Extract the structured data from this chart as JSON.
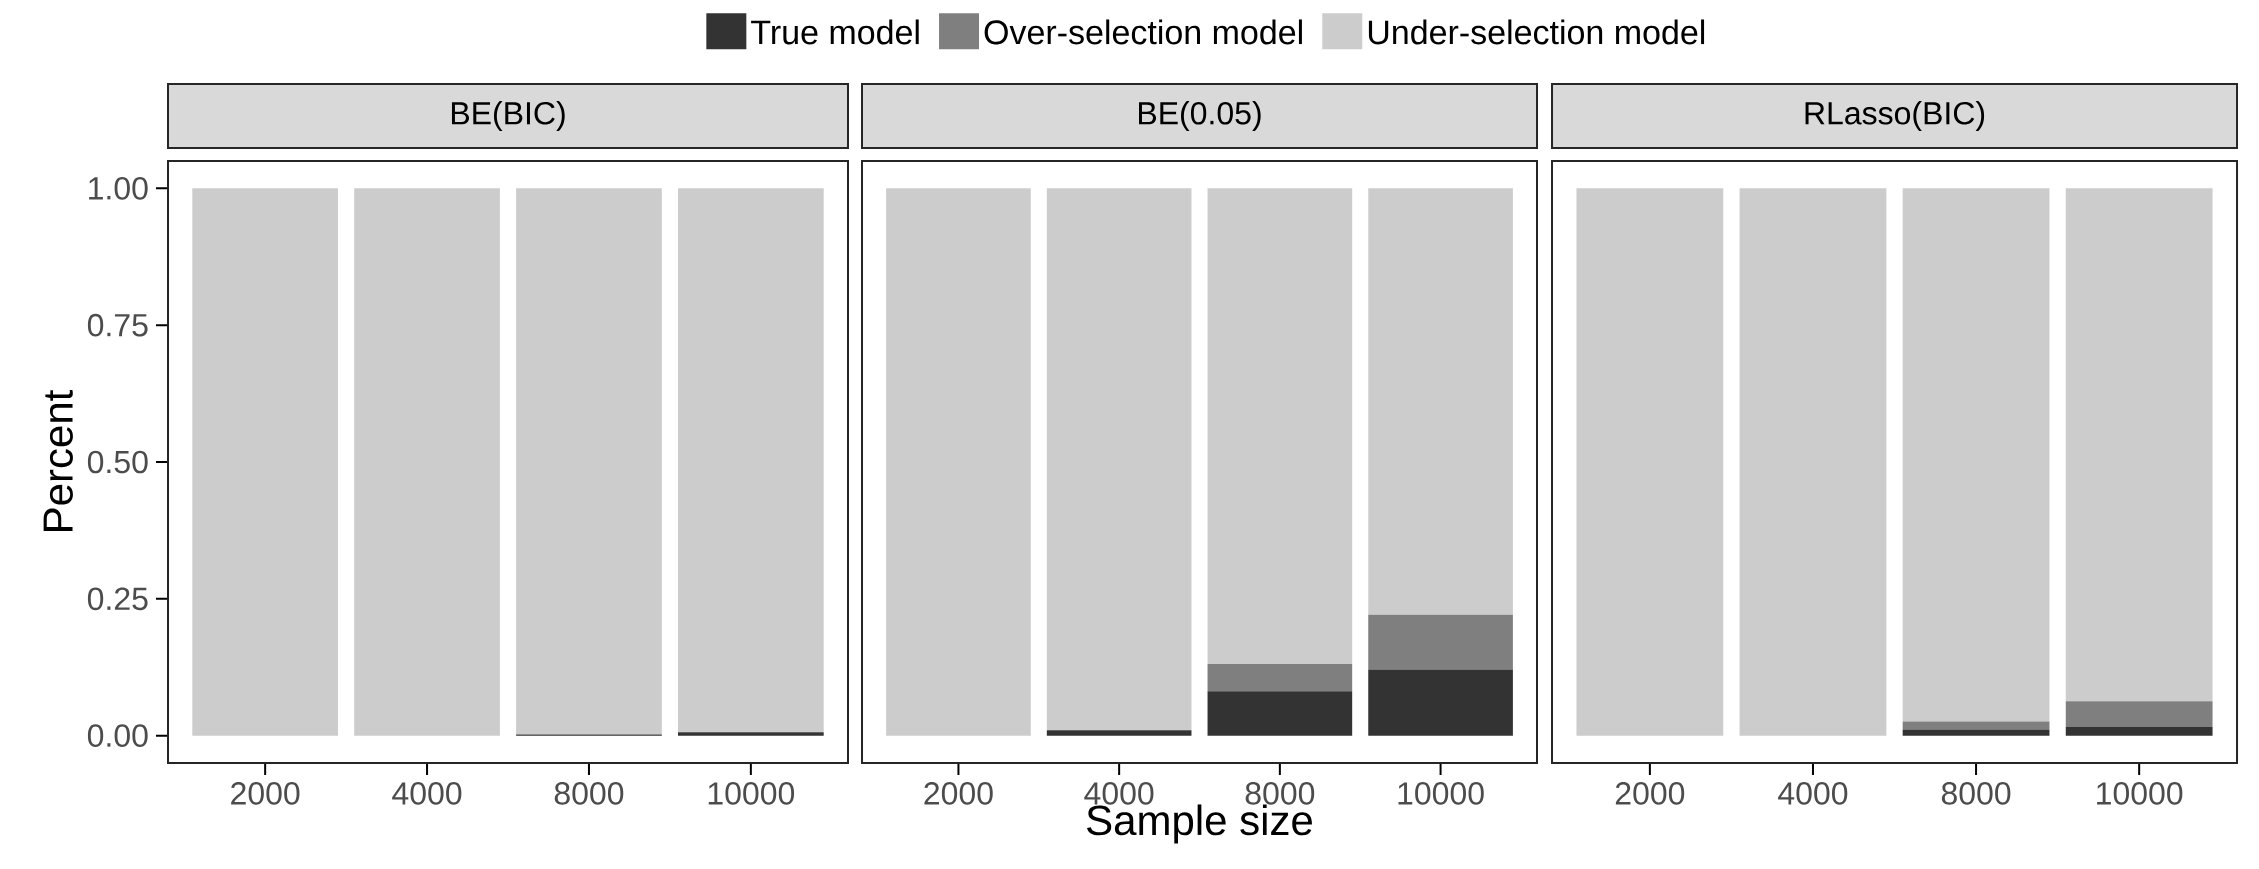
{
  "chart_data": [
    {
      "type": "bar",
      "title": "BE(BIC)",
      "ylabel": "Percent",
      "categories": [
        "2000",
        "4000",
        "8000",
        "10000"
      ],
      "stacked": true,
      "legend": "top",
      "grid": false,
      "series": [
        {
          "name": "True model",
          "color": "#333333",
          "values": [
            0,
            0,
            0.002,
            0.006
          ]
        },
        {
          "name": "Over-selection model",
          "color": "#7f7f7f",
          "values": [
            0,
            0,
            0,
            0
          ]
        },
        {
          "name": "Under-selection model",
          "color": "#cccccc",
          "values": [
            1,
            1,
            0.998,
            0.994
          ]
        }
      ],
      "ylim": [
        -0.05,
        1.05
      ],
      "yticks": [
        {
          "value": 0,
          "label": "0.00"
        },
        {
          "value": 0.25,
          "label": "0.25"
        },
        {
          "value": 0.5,
          "label": "0.50"
        },
        {
          "value": 0.75,
          "label": "0.75"
        },
        {
          "value": 1,
          "label": "1.00"
        }
      ]
    },
    {
      "type": "bar",
      "title": "BE(0.05)",
      "xlabel": "Sample size",
      "categories": [
        "2000",
        "4000",
        "8000",
        "10000"
      ],
      "stacked": true,
      "grid": false,
      "tick_labels": "x",
      "series": [
        {
          "color": "#333333",
          "values": [
            0,
            0.01,
            0.081,
            0.121
          ]
        },
        {
          "color": "#7f7f7f",
          "values": [
            0,
            0,
            0.05,
            0.1
          ]
        },
        {
          "color": "#cccccc",
          "values": [
            1,
            0.99,
            0.869,
            0.779
          ]
        }
      ],
      "ylim": [
        -0.05,
        1.05
      ]
    },
    {
      "type": "bar",
      "title": "RLasso(BIC)",
      "categories": [
        "2000",
        "4000",
        "8000",
        "10000"
      ],
      "stacked": true,
      "grid": false,
      "tick_labels": "x",
      "series": [
        {
          "color": "#333333",
          "values": [
            0,
            0,
            0.011,
            0.016
          ]
        },
        {
          "color": "#7f7f7f",
          "values": [
            0,
            0,
            0.015,
            0.047
          ]
        },
        {
          "color": "#cccccc",
          "values": [
            1,
            1,
            0.974,
            0.937
          ]
        }
      ],
      "ylim": [
        -0.05,
        1.05
      ]
    }
  ]
}
